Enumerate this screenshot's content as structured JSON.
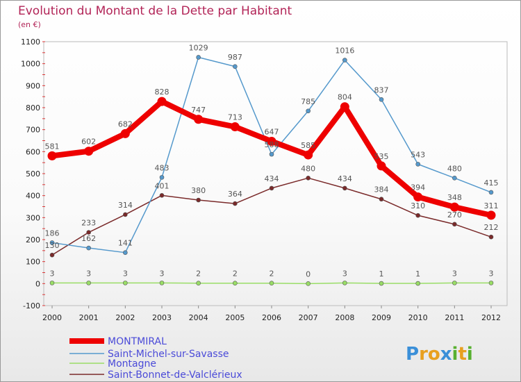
{
  "chart_data": {
    "type": "line",
    "title": "Evolution du Montant de la Dette par Habitant",
    "subtitle": "(en €)",
    "x": [
      "2000",
      "2001",
      "2002",
      "2003",
      "2004",
      "2005",
      "2006",
      "2007",
      "2008",
      "2009",
      "2010",
      "2011",
      "2012"
    ],
    "ylim": [
      -100,
      1100
    ],
    "yticks": [
      -100,
      0,
      100,
      200,
      300,
      400,
      500,
      600,
      700,
      800,
      900,
      1000,
      1100
    ],
    "grid": false,
    "legend": "bottom-left",
    "series": [
      {
        "name": "MONTMIRAL",
        "color": "#ee0000",
        "values": [
          581,
          602,
          682,
          828,
          747,
          713,
          647,
          585,
          804,
          535,
          394,
          348,
          311
        ],
        "labels": [
          "581",
          "602",
          "682",
          "828",
          "747",
          "713",
          "647",
          "585",
          "804",
          "535",
          "394",
          "348",
          "311"
        ]
      },
      {
        "name": "Saint-Michel-sur-Savasse",
        "color": "#5599cc",
        "values": [
          186,
          162,
          141,
          483,
          1029,
          987,
          588,
          785,
          1016,
          837,
          543,
          480,
          415
        ],
        "labels": [
          "186",
          "162",
          "141",
          "483",
          "1029",
          "987",
          "588",
          "785",
          "1016",
          "837",
          "543",
          "480",
          "415"
        ]
      },
      {
        "name": "Montagne",
        "color": "#99dd66",
        "values": [
          3,
          3,
          3,
          3,
          2,
          2,
          2,
          0,
          3,
          1,
          1,
          3,
          3
        ],
        "labels": [
          "3",
          "3",
          "3",
          "3",
          "2",
          "2",
          "2",
          "0",
          "3",
          "1",
          "1",
          "3",
          "3"
        ]
      },
      {
        "name": "Saint-Bonnet-de-Valclérieux",
        "color": "#7a2a2a",
        "values": [
          130,
          233,
          314,
          401,
          380,
          364,
          434,
          480,
          434,
          384,
          310,
          270,
          212
        ],
        "labels": [
          "130",
          "233",
          "314",
          "401",
          "380",
          "364",
          "434",
          "480",
          "434",
          "384",
          "310",
          "270",
          "212"
        ]
      }
    ]
  },
  "brand": {
    "letters": [
      "P",
      "r",
      "o",
      "x",
      "i",
      "t",
      "i"
    ],
    "colors": [
      "#3a8fd8",
      "#e8a020",
      "#e8a020",
      "#3a8fd8",
      "#58b030",
      "#e8a020",
      "#58b030"
    ]
  }
}
